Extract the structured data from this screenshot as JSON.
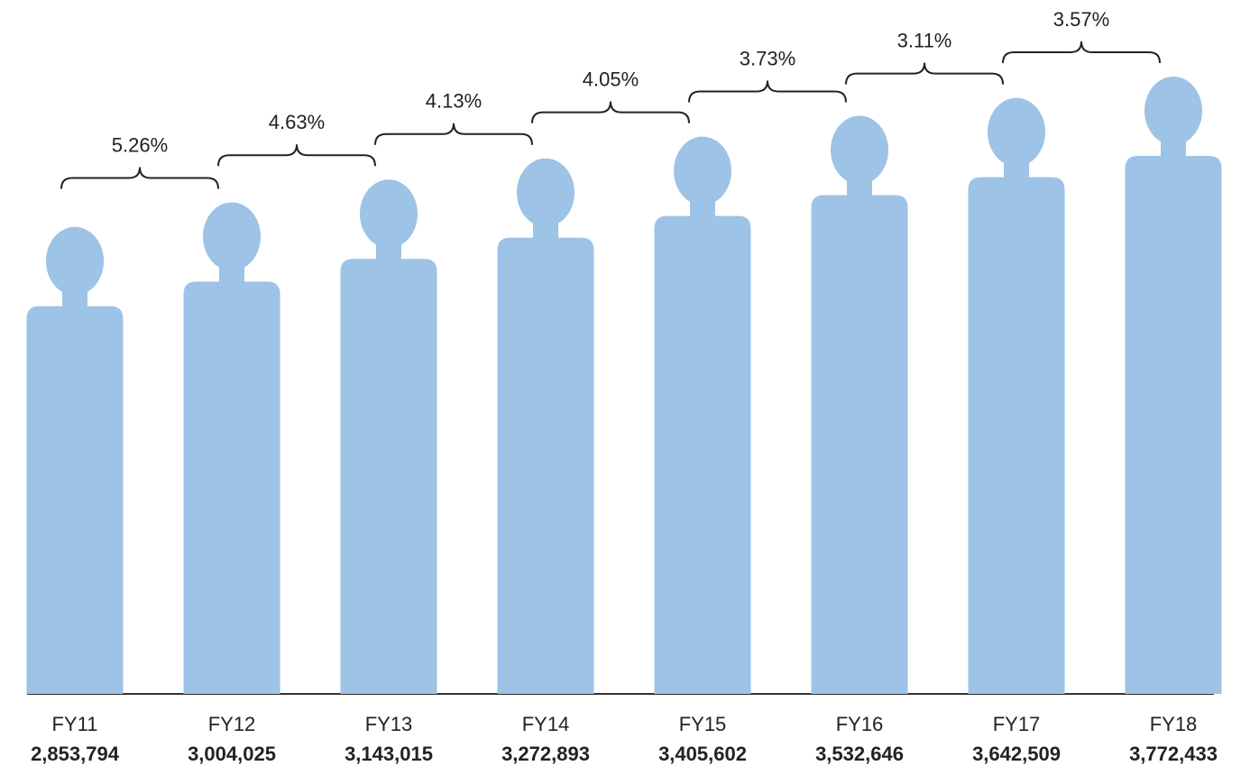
{
  "chart_data": {
    "type": "pictograph",
    "categories": [
      "FY11",
      "FY12",
      "FY13",
      "FY14",
      "FY15",
      "FY16",
      "FY17",
      "FY18"
    ],
    "values": [
      2853794,
      3004025,
      3143015,
      3272893,
      3405602,
      3532646,
      3642509,
      3772433
    ],
    "value_labels": [
      "2,853,794",
      "3,004,025",
      "3,143,015",
      "3,272,893",
      "3,405,602",
      "3,532,646",
      "3,642,509",
      "3,772,433"
    ],
    "color": "#9dc3e6",
    "growth": [
      5.26,
      4.63,
      4.13,
      4.05,
      3.73,
      3.11,
      3.57
    ],
    "growth_labels": [
      "5.26%",
      "4.63%",
      "4.13%",
      "4.05%",
      "3.73%",
      "3.11%",
      "3.57%"
    ]
  }
}
